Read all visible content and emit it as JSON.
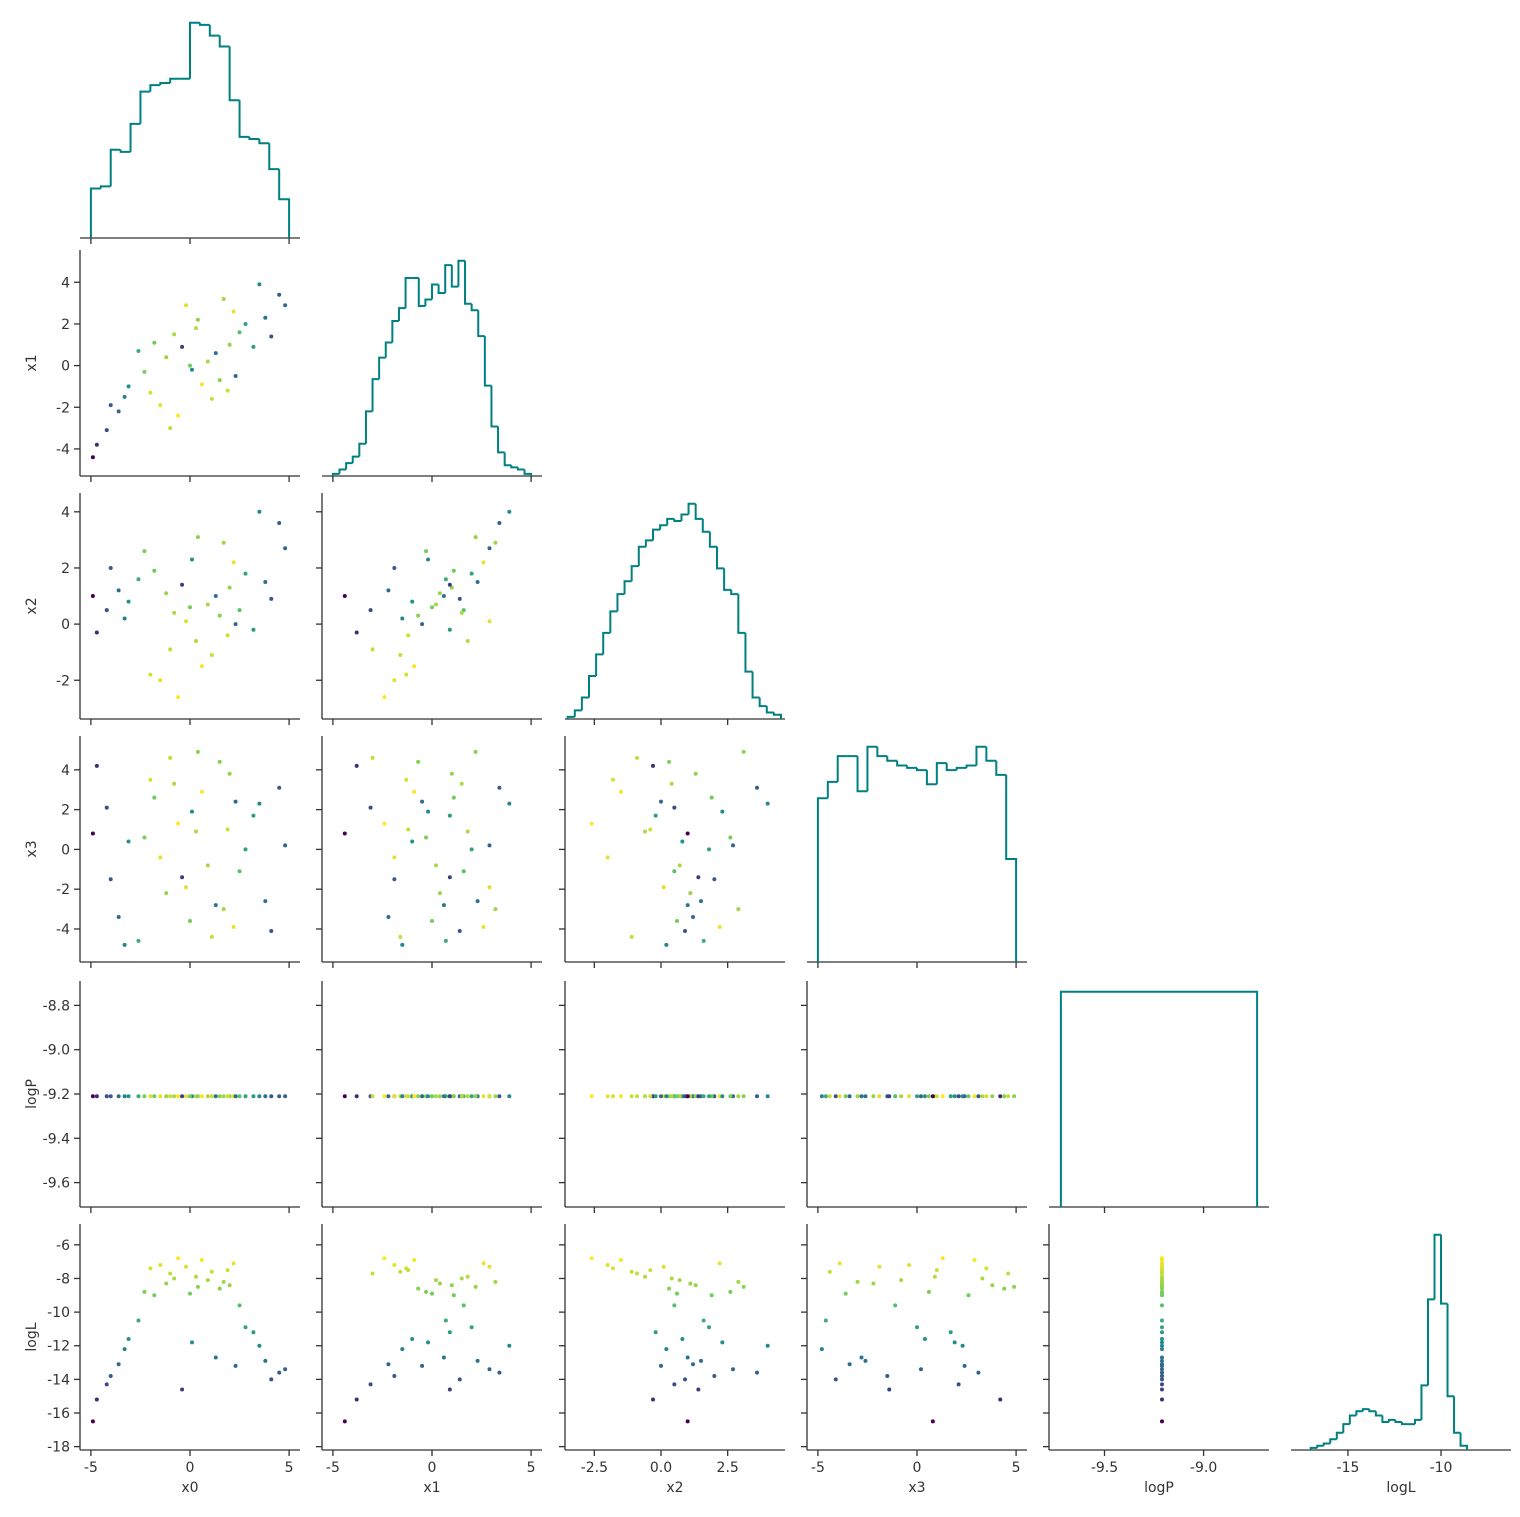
{
  "chart_data": {
    "type": "pairplot",
    "variables": [
      "x0",
      "x1",
      "x2",
      "x3",
      "logP",
      "logL"
    ],
    "hue": "logL",
    "colormap": [
      "#440154",
      "#3b528b",
      "#21918c",
      "#5ec962",
      "#fde725"
    ],
    "hist_color": "#008080",
    "axes": [
      {
        "xlim": [
          -5.55,
          5.55
        ],
        "xticks": [
          -5,
          0,
          5
        ]
      },
      {
        "xlim": [
          -5.55,
          5.55
        ],
        "xticks": [
          -5,
          0,
          5
        ],
        "ylim": [
          -5.3,
          5.55
        ],
        "yticks": [
          -4,
          -2,
          0,
          2,
          4
        ]
      },
      {
        "xlim": [
          -3.6,
          4.65
        ],
        "xticks": [
          -2.5,
          {
            "value": 0,
            "label": "0.0"
          },
          2.5
        ],
        "ylim": [
          -3.38,
          4.67
        ],
        "yticks": [
          -2,
          0,
          2,
          4
        ]
      },
      {
        "xlim": [
          -5.55,
          5.55
        ],
        "xticks": [
          -5,
          0,
          5
        ],
        "ylim": [
          -5.66,
          5.7
        ],
        "yticks": [
          -4,
          -2,
          0,
          2,
          4
        ]
      },
      {
        "xlim": [
          -9.78,
          -8.67
        ],
        "xticks": [
          -9.5,
          {
            "value": -9,
            "label": "-9.0"
          }
        ],
        "ylim": [
          -9.71,
          -8.69
        ],
        "yticks": [
          -9.6,
          -9.4,
          -9.2,
          {
            "value": -9,
            "label": "-9.0"
          },
          -8.8
        ]
      },
      {
        "xlim": [
          -18.06,
          -6.24
        ],
        "xticks": [
          -15,
          -10
        ],
        "ylim": [
          -18.2,
          -4.76
        ],
        "yticks": [
          -18,
          -16,
          -14,
          -12,
          -10,
          -8,
          -6
        ]
      }
    ],
    "samples": {
      "x0": [
        -4.2,
        -3.6,
        -4.7,
        -3.1,
        -4.0,
        3.8,
        4.5,
        3.2,
        4.1,
        4.8,
        -2.0,
        -1.2,
        0.3,
        1.5,
        2.2,
        -0.6,
        0.9,
        -1.8,
        1.1,
        2.0,
        -0.2,
        -2.3,
        0.6,
        1.7,
        -1.0,
        2.5,
        -2.6,
        0.1,
        1.3,
        -0.8,
        2.8,
        -1.5,
        0.4,
        -3.3,
        3.5,
        -4.9,
        0.0,
        1.9,
        -0.4,
        2.3
      ],
      "x1": [
        -3.1,
        -2.2,
        -3.8,
        -1.0,
        -1.9,
        2.3,
        3.4,
        0.9,
        1.4,
        2.9,
        -1.3,
        0.4,
        1.8,
        -0.7,
        2.6,
        -2.4,
        0.2,
        1.1,
        -1.6,
        1.0,
        2.9,
        -0.3,
        -0.9,
        3.2,
        -3.0,
        1.6,
        0.7,
        -0.2,
        0.6,
        1.5,
        2.0,
        -1.9,
        2.2,
        -1.5,
        3.9,
        -4.4,
        0.0,
        -1.2,
        0.9,
        -0.5
      ],
      "x2": [
        0.5,
        1.2,
        -0.3,
        0.8,
        2.0,
        1.5,
        3.6,
        -0.2,
        0.9,
        2.7,
        -1.8,
        1.1,
        -0.6,
        0.3,
        2.2,
        -2.6,
        0.7,
        1.9,
        -1.1,
        1.3,
        0.1,
        2.6,
        -1.5,
        2.9,
        -0.9,
        0.5,
        1.6,
        2.3,
        1.0,
        0.4,
        1.8,
        -2.0,
        3.1,
        0.2,
        4.0,
        1.0,
        0.6,
        -0.4,
        1.4,
        0.0
      ],
      "x3": [
        2.1,
        -3.4,
        4.2,
        0.4,
        -1.5,
        -2.6,
        3.1,
        1.7,
        -4.1,
        0.2,
        3.5,
        -2.2,
        0.9,
        4.4,
        -3.9,
        1.3,
        -0.8,
        2.6,
        -4.4,
        3.8,
        -1.9,
        0.6,
        2.9,
        -3.0,
        4.6,
        -1.1,
        -4.6,
        1.9,
        -2.8,
        3.3,
        0.0,
        -0.4,
        4.9,
        -4.8,
        2.3,
        0.8,
        -3.6,
        1.0,
        -1.4,
        2.4
      ],
      "logP": [
        -9.21,
        -9.21,
        -9.21,
        -9.21,
        -9.21,
        -9.21,
        -9.21,
        -9.21,
        -9.21,
        -9.21,
        -9.21,
        -9.21,
        -9.21,
        -9.21,
        -9.21,
        -9.21,
        -9.21,
        -9.21,
        -9.21,
        -9.21,
        -9.21,
        -9.21,
        -9.21,
        -9.21,
        -9.21,
        -9.21,
        -9.21,
        -9.21,
        -9.21,
        -9.21,
        -9.21,
        -9.21,
        -9.21,
        -9.21,
        -9.21,
        -9.21,
        -9.21,
        -9.21,
        -9.21,
        -9.21
      ],
      "logL": [
        -14.3,
        -13.1,
        -15.2,
        -11.6,
        -13.8,
        -12.9,
        -13.6,
        -11.2,
        -14.0,
        -13.4,
        -7.4,
        -8.3,
        -7.9,
        -8.6,
        -7.1,
        -6.8,
        -8.1,
        -9.0,
        -7.6,
        -8.4,
        -7.3,
        -8.8,
        -6.9,
        -8.2,
        -7.7,
        -9.6,
        -10.5,
        -11.8,
        -12.7,
        -8.0,
        -10.9,
        -7.2,
        -8.5,
        -12.2,
        -12.0,
        -16.5,
        -8.9,
        -7.5,
        -14.6,
        -13.2
      ]
    },
    "histograms": [
      {
        "bins": [
          -5,
          -4.5,
          -4,
          -3.5,
          -3,
          -2.5,
          -2,
          -1.5,
          -1,
          -0.5,
          0,
          0.5,
          1,
          1.5,
          2,
          2.5,
          3,
          3.5,
          4,
          4.5,
          5
        ],
        "counts": [
          23,
          24,
          41,
          40,
          53,
          68,
          71,
          72,
          74,
          74,
          100,
          99,
          94,
          89,
          64,
          47,
          46,
          44,
          32,
          18
        ]
      },
      {
        "bins": [
          -5,
          -4.667,
          -4.333,
          -4,
          -3.667,
          -3.333,
          -3,
          -2.667,
          -2.333,
          -2,
          -1.667,
          -1.333,
          -1,
          -0.667,
          -0.333,
          0,
          0.333,
          0.667,
          1,
          1.333,
          1.667,
          2,
          2.333,
          2.667,
          3,
          3.333,
          3.667,
          4,
          4.333,
          4.667,
          5
        ],
        "counts": [
          1,
          3,
          6,
          9,
          15,
          30,
          45,
          55,
          62,
          72,
          78,
          92,
          92,
          79,
          82,
          89,
          85,
          98,
          88,
          100,
          80,
          77,
          65,
          42,
          23,
          11,
          5,
          4,
          3,
          1
        ]
      },
      {
        "bins": [
          -3.5,
          -3.233,
          -2.967,
          -2.7,
          -2.433,
          -2.167,
          -1.9,
          -1.633,
          -1.367,
          -1.1,
          -0.833,
          -0.567,
          -0.3,
          -0.033,
          0.233,
          0.5,
          0.767,
          1.033,
          1.3,
          1.567,
          1.833,
          2.1,
          2.367,
          2.633,
          2.9,
          3.167,
          3.433,
          3.7,
          3.967,
          4.233,
          4.5
        ],
        "counts": [
          1,
          4,
          10,
          20,
          30,
          40,
          50,
          58,
          64,
          71,
          80,
          83,
          88,
          90,
          93,
          92,
          95,
          100,
          93,
          87,
          80,
          70,
          60,
          58,
          40,
          22,
          10,
          6,
          3,
          2
        ]
      },
      {
        "bins": [
          -5,
          -4.5,
          -4,
          -3.5,
          -3,
          -2.5,
          -2,
          -1.5,
          -1,
          -0.5,
          0,
          0.5,
          1,
          1.5,
          2,
          2.5,
          3,
          3.5,
          4,
          4.5,
          5
        ],
        "counts": [
          70,
          77,
          88,
          88,
          73,
          92,
          88,
          86,
          84,
          83,
          82,
          76,
          85,
          82,
          83,
          84,
          92,
          86,
          80,
          44
        ]
      },
      {
        "bins": [
          -9.72,
          -8.73
        ],
        "counts": [
          100
        ]
      },
      {
        "bins": [
          -17,
          -16.65,
          -16.3,
          -15.95,
          -15.6,
          -15.25,
          -14.9,
          -14.55,
          -14.2,
          -13.85,
          -13.5,
          -13.15,
          -12.8,
          -12.45,
          -12.1,
          -11.75,
          -11.4,
          -11.05,
          -10.7,
          -10.35,
          -10,
          -9.65,
          -9.3,
          -8.95,
          -8.6
        ],
        "counts": [
          1,
          2,
          3,
          5,
          8,
          12,
          16,
          18,
          19,
          18,
          16,
          13,
          14,
          13,
          12,
          12,
          14,
          30,
          70,
          100,
          68,
          25,
          8,
          2
        ]
      }
    ]
  }
}
